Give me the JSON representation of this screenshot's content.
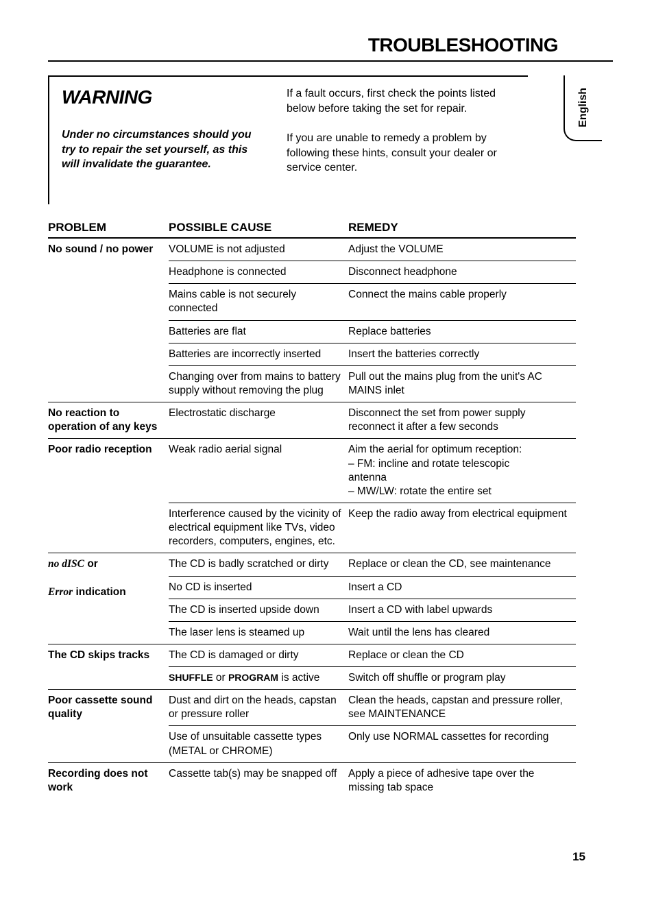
{
  "title": "TROUBLESHOOTING",
  "language_tab": "English",
  "warning": {
    "heading": "WARNING",
    "note": "Under no circumstances should you try to repair the set yourself, as this will invalidate the guarantee.",
    "advice1": "If a fault occurs, first check the points listed below before taking the set for repair.",
    "advice2": "If you are unable to remedy a problem by following these hints, consult your dealer or service center."
  },
  "headers": {
    "problem": "PROBLEM",
    "cause": "POSSIBLE CAUSE",
    "remedy": "REMEDY"
  },
  "groups": [
    {
      "problem": "No sound / no power",
      "rows": [
        {
          "cause": "VOLUME is not adjusted",
          "remedy": "Adjust the VOLUME"
        },
        {
          "cause": "Headphone is connected",
          "remedy": "Disconnect headphone"
        },
        {
          "cause": "Mains cable is not securely connected",
          "remedy": "Connect the mains cable properly"
        },
        {
          "cause": "Batteries are flat",
          "remedy": "Replace batteries"
        },
        {
          "cause": "Batteries are incorrectly inserted",
          "remedy": "Insert the batteries correctly"
        },
        {
          "cause": "Changing over from mains to battery supply without removing the plug",
          "remedy": "Pull out the mains plug from the unit's AC MAINS inlet"
        }
      ]
    },
    {
      "problem": "No reaction to operation of any keys",
      "rows": [
        {
          "cause": "Electrostatic discharge",
          "remedy": "Disconnect the set from power supply reconnect it after a few seconds"
        }
      ]
    },
    {
      "problem": "Poor radio reception",
      "rows": [
        {
          "cause": "Weak radio aerial signal",
          "remedy": "Aim the aerial for optimum reception:\n– FM: incline and rotate telescopic\n     antenna\n– MW/LW: rotate the entire set"
        },
        {
          "cause": "Interference caused by the vicinity of electrical equipment like TVs, video recorders, computers, engines, etc.",
          "remedy": "Keep the radio away from electrical equipment"
        }
      ]
    },
    {
      "problem_html": "<span class='script'>no dISC</span> <span class='bold'>or</span><br><br><span class='script'>Error</span> <span class='bold'>indication</span>",
      "rows": [
        {
          "cause": "The CD is badly scratched or dirty",
          "remedy": "Replace or clean the CD, see maintenance"
        },
        {
          "cause": "No CD is inserted",
          "remedy": "Insert a CD"
        },
        {
          "cause": "The CD is inserted upside down",
          "remedy": "Insert a CD with label upwards"
        },
        {
          "cause": "The laser lens is steamed up",
          "remedy": "Wait until the lens has cleared"
        }
      ]
    },
    {
      "problem": "The CD skips tracks",
      "rows": [
        {
          "cause": "The CD is damaged or dirty",
          "remedy": "Replace or clean the CD"
        },
        {
          "cause_html": "<span style='font-variant:small-caps;font-size:14px;font-weight:700'>SHUFFLE</span> or <span style='font-variant:small-caps;font-size:14px;font-weight:700'>PROGRAM</span> is active",
          "remedy": "Switch off shuffle or program play"
        }
      ]
    },
    {
      "problem": "Poor cassette sound quality",
      "rows": [
        {
          "cause": "Dust and dirt on the heads, capstan or pressure roller",
          "remedy": "Clean the heads, capstan and pressure roller, see MAINTENANCE"
        },
        {
          "cause": "Use of unsuitable cassette types (METAL or CHROME)",
          "remedy": "Only use NORMAL cassettes for recording"
        }
      ]
    },
    {
      "problem": "Recording does not work",
      "no_bottom_border": true,
      "rows": [
        {
          "cause": "Cassette tab(s) may be snapped off",
          "remedy": "Apply a piece of adhesive tape over the missing tab space"
        }
      ]
    }
  ],
  "page_number": "15"
}
